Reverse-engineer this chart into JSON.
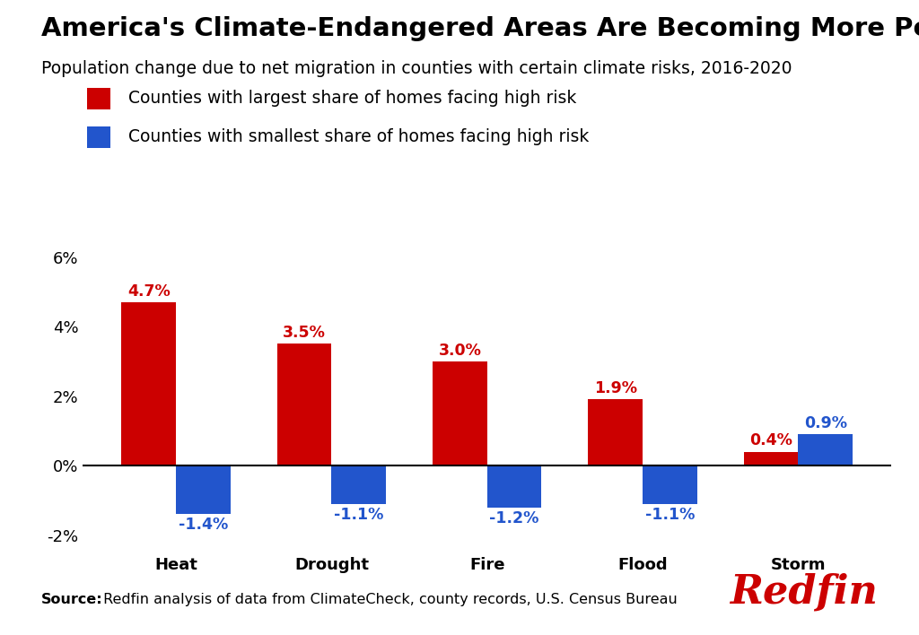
{
  "title": "America's Climate-Endangered Areas Are Becoming More Populous",
  "subtitle": "Population change due to net migration in counties with certain climate risks, 2016-2020",
  "categories": [
    "Heat",
    "Drought",
    "Fire",
    "Flood",
    "Storm"
  ],
  "high_risk_values": [
    4.7,
    3.5,
    3.0,
    1.9,
    0.4
  ],
  "low_risk_values": [
    -1.4,
    -1.1,
    -1.2,
    -1.1,
    0.9
  ],
  "high_risk_color": "#CC0000",
  "low_risk_color": "#2255CC",
  "high_risk_label": "Counties with largest share of homes facing high risk",
  "low_risk_label": "Counties with smallest share of homes facing high risk",
  "ylim": [
    -2.5,
    7.0
  ],
  "yticks": [
    -2,
    0,
    2,
    4,
    6
  ],
  "ytick_labels": [
    "-2%",
    "0%",
    "2%",
    "4%",
    "6%"
  ],
  "bar_width": 0.35,
  "background_color": "#FFFFFF",
  "source_bold": "Source:",
  "source_text": " Redfin analysis of data from ClimateCheck, county records, U.S. Census Bureau",
  "redfin_text": "Redfin",
  "redfin_color": "#CC0000",
  "title_fontsize": 21,
  "subtitle_fontsize": 13.5,
  "tick_fontsize": 13,
  "bar_label_fontsize": 12.5,
  "legend_fontsize": 13.5,
  "source_fontsize": 11.5
}
